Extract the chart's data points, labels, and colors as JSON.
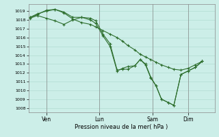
{
  "xlabel": "Pression niveau de la mer( hPa )",
  "bg_color": "#cceee8",
  "grid_color": "#aad8cc",
  "line_color": "#2d6e2d",
  "ylim": [
    1007.5,
    1019.8
  ],
  "yticks": [
    1008,
    1009,
    1010,
    1011,
    1012,
    1013,
    1014,
    1015,
    1016,
    1017,
    1018,
    1019
  ],
  "xtick_labels": [
    "Ven",
    "Lun",
    "Sam",
    "Dim"
  ],
  "xtick_positions": [
    1,
    4,
    7,
    9
  ],
  "xlim": [
    0,
    10.5
  ],
  "line1_x": [
    0.1,
    0.5,
    1.0,
    1.5,
    2.0,
    2.5,
    3.0,
    3.5,
    3.8,
    4.2,
    4.6,
    5.0,
    5.3,
    5.6,
    6.0,
    6.3,
    6.6,
    6.9,
    7.2,
    7.5,
    7.9,
    8.2,
    8.6,
    9.0,
    9.4,
    9.8
  ],
  "line1_y": [
    1018.2,
    1018.5,
    1018.2,
    1017.9,
    1017.5,
    1018.0,
    1018.3,
    1018.2,
    1017.9,
    1016.4,
    1015.3,
    1012.3,
    1012.4,
    1012.4,
    1012.8,
    1013.5,
    1013.0,
    1011.5,
    1010.5,
    1009.0,
    1008.6,
    1008.3,
    1011.8,
    1012.2,
    1012.6,
    1013.3
  ],
  "line2_x": [
    0.1,
    0.5,
    1.0,
    1.5,
    2.0,
    2.5,
    3.0,
    3.5,
    3.8,
    4.2,
    4.6,
    5.0,
    5.3,
    5.6,
    6.0,
    6.3,
    6.6,
    6.9,
    7.2,
    7.5,
    7.9,
    8.2,
    8.6,
    9.0,
    9.4,
    9.8
  ],
  "line2_y": [
    1018.3,
    1018.7,
    1019.0,
    1019.2,
    1018.8,
    1018.1,
    1017.7,
    1017.5,
    1017.2,
    1016.8,
    1016.4,
    1016.0,
    1015.6,
    1015.1,
    1014.6,
    1014.1,
    1013.8,
    1013.5,
    1013.2,
    1012.9,
    1012.6,
    1012.4,
    1012.3,
    1012.5,
    1012.9,
    1013.3
  ],
  "line3_x": [
    0.1,
    0.5,
    1.0,
    1.5,
    2.0,
    2.5,
    3.0,
    3.5,
    3.8,
    4.2,
    4.6,
    5.0,
    5.3,
    5.6,
    6.0,
    6.3,
    6.6,
    6.9,
    7.2,
    7.5,
    7.9,
    8.2,
    8.6,
    9.0,
    9.4,
    9.8
  ],
  "line3_y": [
    1018.3,
    1018.6,
    1019.1,
    1019.2,
    1018.9,
    1018.3,
    1018.3,
    1018.0,
    1017.6,
    1016.2,
    1015.0,
    1012.2,
    1012.5,
    1012.7,
    1012.8,
    1013.5,
    1012.9,
    1011.4,
    1010.5,
    1009.0,
    1008.6,
    1008.3,
    1011.8,
    1012.2,
    1012.6,
    1013.3
  ]
}
